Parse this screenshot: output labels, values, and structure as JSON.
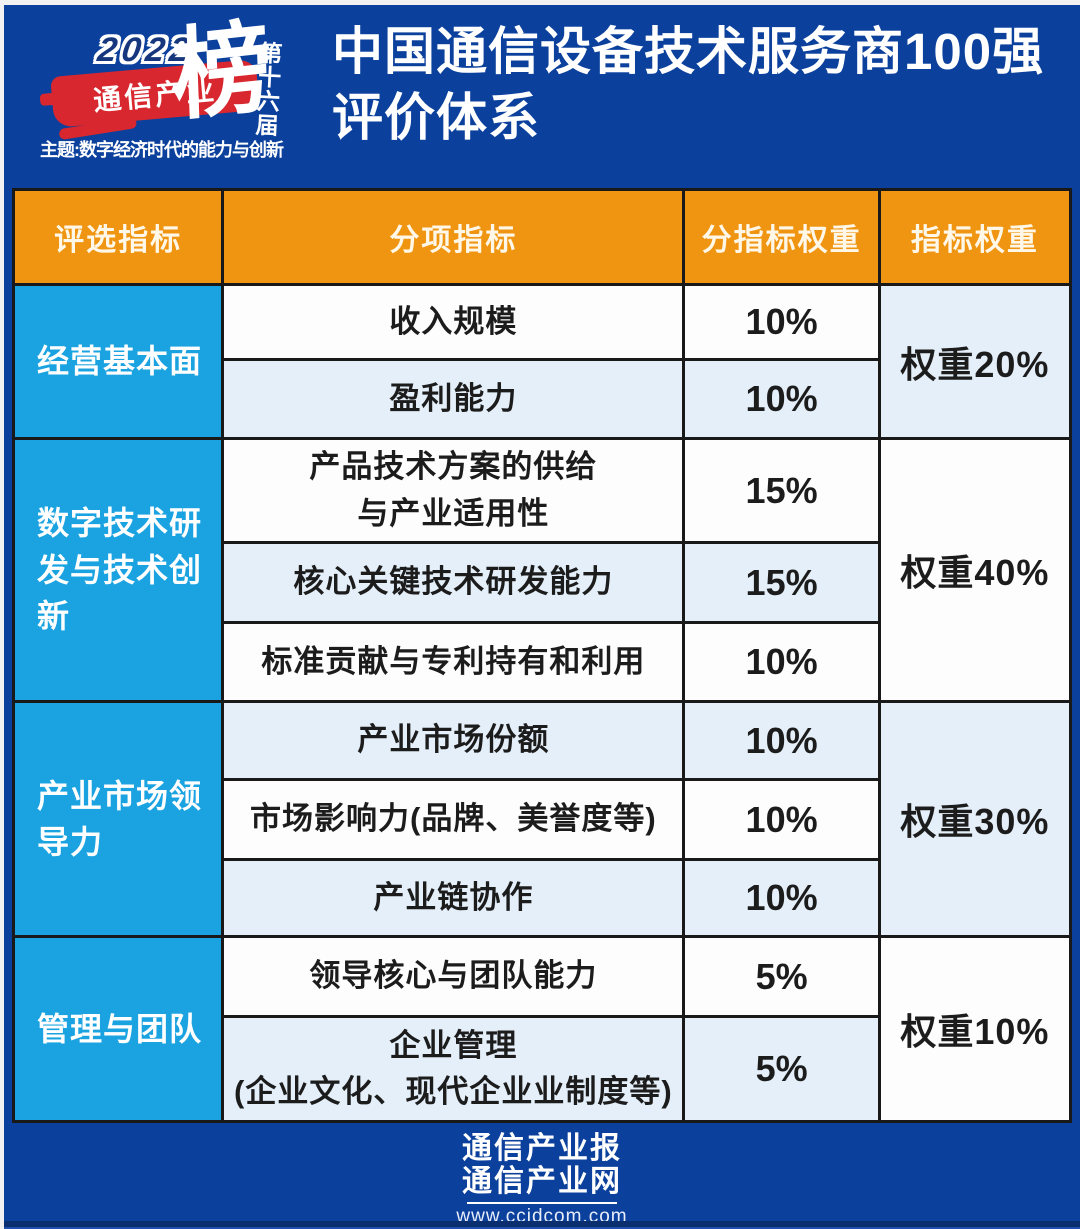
{
  "header": {
    "badge": {
      "year": "2022",
      "brand": "通信产业",
      "bang": "榜",
      "edition": "第十六届",
      "theme": "主题:数字经济时代的能力与创新"
    },
    "title_line1": "中国通信设备技术服务商100强",
    "title_line2": "评价体系"
  },
  "table": {
    "columns": [
      "评选指标",
      "分项指标",
      "分指标权重",
      "指标权重"
    ],
    "groups": [
      {
        "label": "经营基本面",
        "weight": "权重20%",
        "rows": [
          {
            "name": "收入规模",
            "pct": "10%"
          },
          {
            "name": "盈利能力",
            "pct": "10%"
          }
        ]
      },
      {
        "label": "数字技术研发与技术创新",
        "weight": "权重40%",
        "rows": [
          {
            "name": "产品技术方案的供给\n与产业适用性",
            "pct": "15%"
          },
          {
            "name": "核心关键技术研发能力",
            "pct": "15%"
          },
          {
            "name": "标准贡献与专利持有和利用",
            "pct": "10%"
          }
        ]
      },
      {
        "label": "产业市场领导力",
        "weight": "权重30%",
        "rows": [
          {
            "name": "产业市场份额",
            "pct": "10%"
          },
          {
            "name": "市场影响力(品牌、美誉度等)",
            "pct": "10%"
          },
          {
            "name": "产业链协作",
            "pct": "10%"
          }
        ]
      },
      {
        "label": "管理与团队",
        "weight": "权重10%",
        "rows": [
          {
            "name": "领导核心与团队能力",
            "pct": "5%"
          },
          {
            "name": "企业管理\n(企业文化、现代企业业制度等)",
            "pct": "5%"
          }
        ]
      }
    ]
  },
  "footer": {
    "logo_line1": "通信产业报",
    "logo_line2": "通信产业网",
    "url": "www.ccidcom.com"
  },
  "colors": {
    "background_blue": "#0B409C",
    "header_orange": "#F09511",
    "category_cyan": "#1BA3E1",
    "badge_red": "#D8272E",
    "row_light_blue": "#E4EFF9",
    "row_white": "#FDFDFD"
  }
}
